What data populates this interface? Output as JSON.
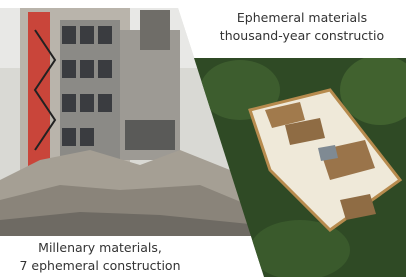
{
  "captions": {
    "right": {
      "line1": "Ephemeral materials",
      "line2": "thousand-year constructio"
    },
    "left": {
      "line1": "Millenary materials,",
      "line2": "7 ephemeral construction"
    }
  }
}
